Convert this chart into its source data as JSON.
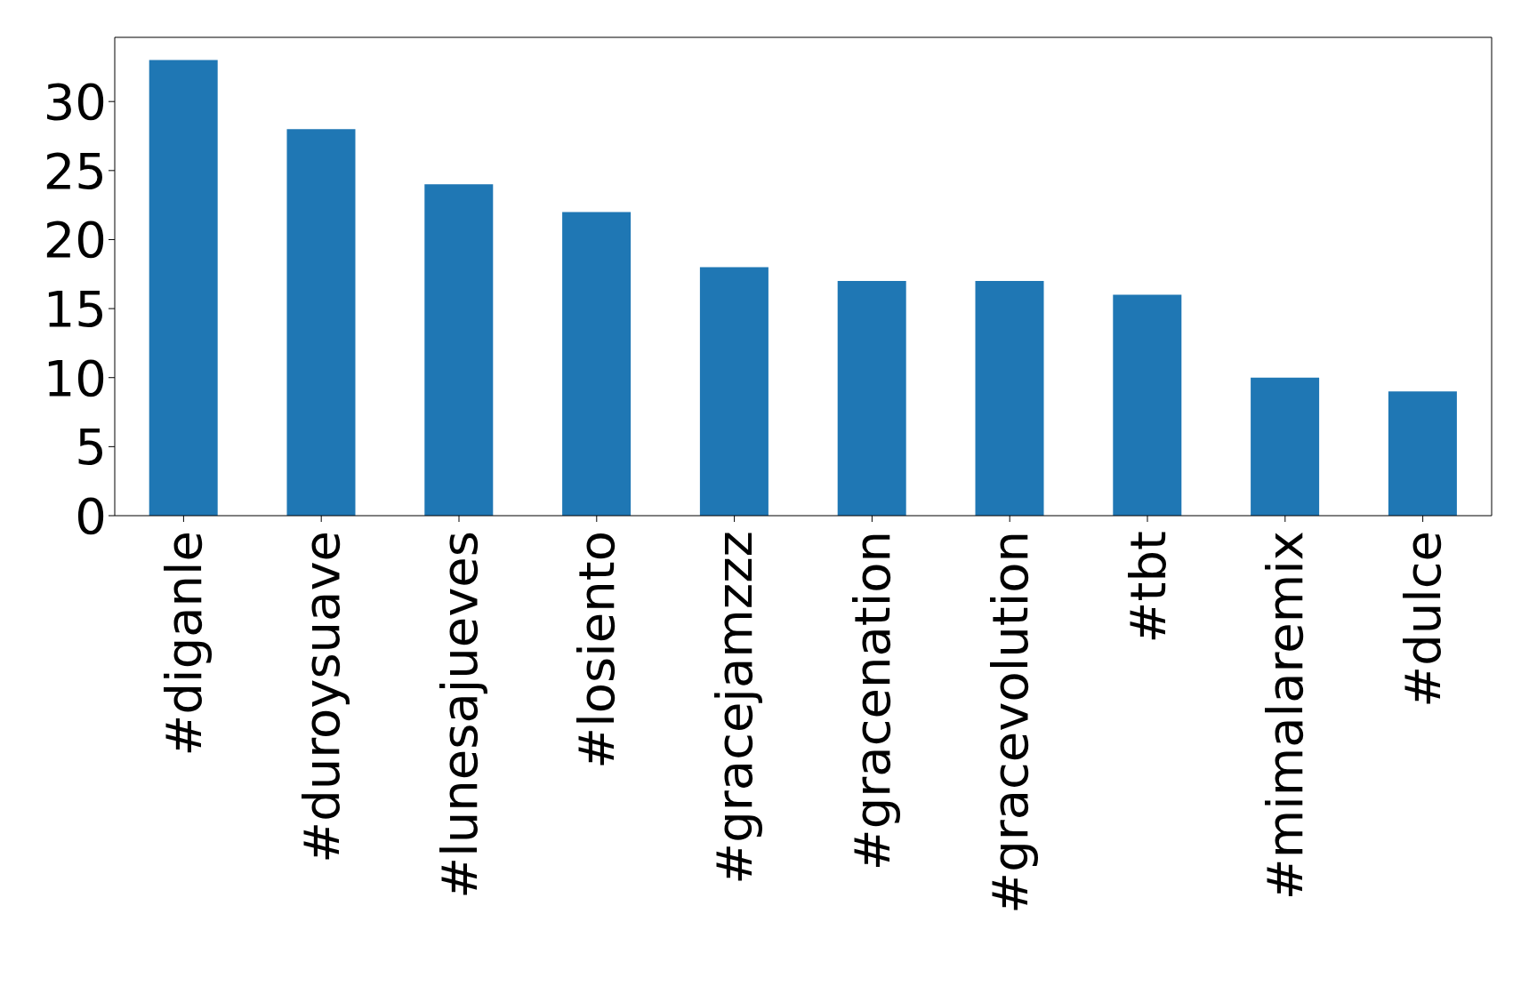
{
  "chart_data": {
    "type": "bar",
    "categories": [
      "#diganle",
      "#duroysuave",
      "#lunesajueves",
      "#losiento",
      "#gracejamzzz",
      "#gracenation",
      "#gracevolution",
      "#tbt",
      "#mimalaremix",
      "#dulce"
    ],
    "values": [
      33,
      28,
      24,
      22,
      18,
      17,
      17,
      16,
      10,
      9
    ],
    "color": "#1f77b4",
    "ylim": [
      0,
      34.65
    ],
    "yticks": [
      0,
      5,
      10,
      15,
      20,
      25,
      30
    ],
    "grid": false
  }
}
